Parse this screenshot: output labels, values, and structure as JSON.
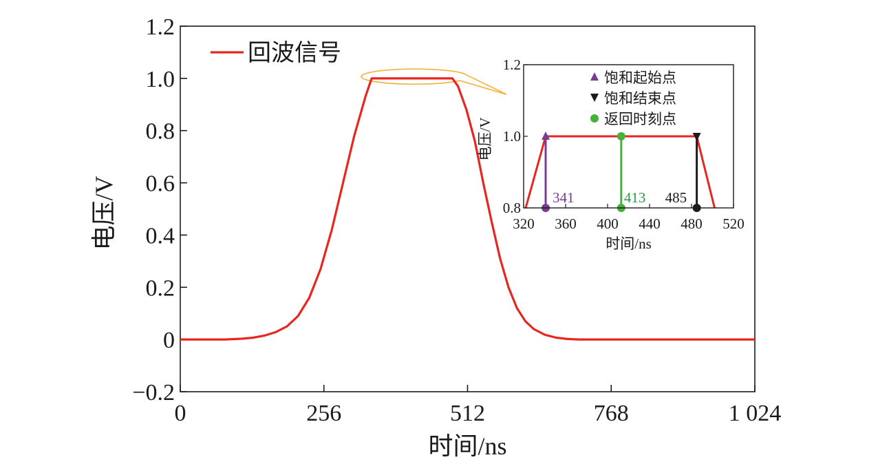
{
  "chart_data": [
    {
      "type": "line",
      "title": "",
      "xlabel": "时间/ns",
      "ylabel": "电压/V",
      "xlim": [
        0,
        1024
      ],
      "ylim": [
        -0.2,
        1.2
      ],
      "xticks": [
        0,
        256,
        512,
        768,
        1024
      ],
      "xtick_labels": [
        "0",
        "256",
        "512",
        "768",
        "1 024"
      ],
      "yticks": [
        -0.2,
        0,
        0.2,
        0.4,
        0.6,
        0.8,
        1.0,
        1.2
      ],
      "ytick_labels": [
        "−0.2",
        "0",
        "0.2",
        "0.4",
        "0.6",
        "0.8",
        "1.0",
        "1.2"
      ],
      "legend_position": "top-left",
      "series": [
        {
          "name": "回波信号",
          "color": "#e8251f",
          "x": [
            0,
            80,
            110,
            130,
            150,
            170,
            190,
            210,
            230,
            250,
            270,
            290,
            310,
            330,
            341,
            485,
            495,
            510,
            525,
            540,
            555,
            570,
            585,
            600,
            615,
            630,
            650,
            670,
            690,
            710,
            1024
          ],
          "y": [
            0,
            0,
            0.003,
            0.007,
            0.015,
            0.028,
            0.05,
            0.09,
            0.16,
            0.27,
            0.42,
            0.6,
            0.78,
            0.93,
            1.0,
            1.0,
            0.97,
            0.88,
            0.76,
            0.6,
            0.45,
            0.31,
            0.2,
            0.12,
            0.07,
            0.04,
            0.018,
            0.007,
            0.002,
            0,
            0
          ]
        }
      ],
      "annotation": {
        "type": "ellipse-callout",
        "color": "#f2b233",
        "x_range": [
          318,
          508
        ],
        "y_center": 1.01
      }
    },
    {
      "type": "line",
      "title": "",
      "xlabel": "时间/ns",
      "ylabel": "电压/V",
      "xlim": [
        320,
        520
      ],
      "ylim": [
        0.8,
        1.2
      ],
      "xticks": [
        320,
        360,
        400,
        440,
        480,
        520
      ],
      "xtick_labels": [
        "320",
        "360",
        "400",
        "440",
        "480",
        "520"
      ],
      "yticks": [
        0.8,
        1.0,
        1.2
      ],
      "ytick_labels": [
        "0.8",
        "1.0",
        "1.2"
      ],
      "legend_position": "top-center",
      "line": {
        "color": "#e8251f",
        "x": [
          322,
          341,
          485,
          502
        ],
        "y": [
          0.8,
          1.0,
          1.0,
          0.8
        ]
      },
      "markers": [
        {
          "name": "饱和起始点",
          "x": 341,
          "value_label": "341",
          "color": "#7a3b96",
          "top_symbol": "triangle-up"
        },
        {
          "name": "饱和结束点",
          "x": 485,
          "value_label": "485",
          "color": "#1e1a1a",
          "top_symbol": "triangle-down"
        },
        {
          "name": "返回时刻点",
          "x": 413,
          "value_label": "413",
          "color": "#45b03a",
          "top_symbol": "circle"
        }
      ],
      "label_colors": {
        "341": "#7a3b96",
        "413": "#2c9a4a",
        "485": "#1e1a1a"
      }
    }
  ]
}
